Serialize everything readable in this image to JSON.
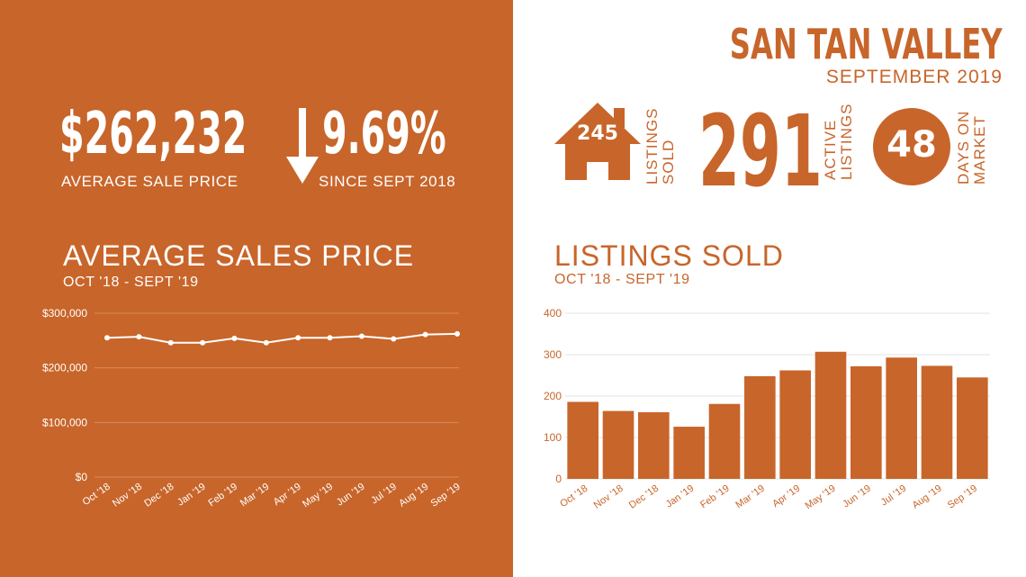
{
  "header": {
    "city": "SAN TAN VALLEY",
    "period": "SEPTEMBER 2019"
  },
  "summary": {
    "avg_price_value": "$262,232",
    "avg_price_label": "AVERAGE  SALE PRICE",
    "change_value": "9.69%",
    "change_label": "SINCE SEPT 2018",
    "change_direction": "down"
  },
  "stats": {
    "listings_sold_value": "245",
    "listings_sold_label_1": "LISTINGS",
    "listings_sold_label_2": "SOLD",
    "active_listings_value": "291",
    "active_listings_label_1": "ACTIVE",
    "active_listings_label_2": "LISTINGS",
    "days_on_market_value": "48",
    "days_on_market_label_1": "DAYS ON",
    "days_on_market_label_2": "MARKET"
  },
  "colors": {
    "accent": "#c8652a",
    "white": "#ffffff"
  },
  "chart_data": [
    {
      "type": "line",
      "title": "AVERAGE SALES PRICE",
      "subtitle": "OCT '18 - SEPT '19",
      "categories": [
        "Oct '18",
        "Nov '18",
        "Dec '18",
        "Jan '19",
        "Feb '19",
        "Mar '19",
        "Apr '19",
        "May '19",
        "Jun '19",
        "Jul '19",
        "Aug '19",
        "Sep '19"
      ],
      "values": [
        255000,
        257000,
        246000,
        246000,
        254000,
        246000,
        255000,
        255000,
        258000,
        253000,
        261000,
        262232
      ],
      "ylim": [
        0,
        300000
      ],
      "yticks": [
        "$0",
        "$100,000",
        "$200,000",
        "$300,000"
      ],
      "grid": true
    },
    {
      "type": "bar",
      "title": "LISTINGS SOLD",
      "subtitle": "OCT '18 - SEPT '19",
      "categories": [
        "Oct '18",
        "Nov '18",
        "Dec '18",
        "Jan '19",
        "Feb '19",
        "Mar '19",
        "Apr '19",
        "May '19",
        "Jun '19",
        "Jul '19",
        "Aug '19",
        "Sep '19"
      ],
      "values": [
        186,
        164,
        161,
        126,
        181,
        248,
        262,
        307,
        272,
        293,
        273,
        245
      ],
      "ylim": [
        0,
        400
      ],
      "yticks": [
        "0",
        "100",
        "200",
        "300",
        "400"
      ],
      "grid": true
    }
  ]
}
